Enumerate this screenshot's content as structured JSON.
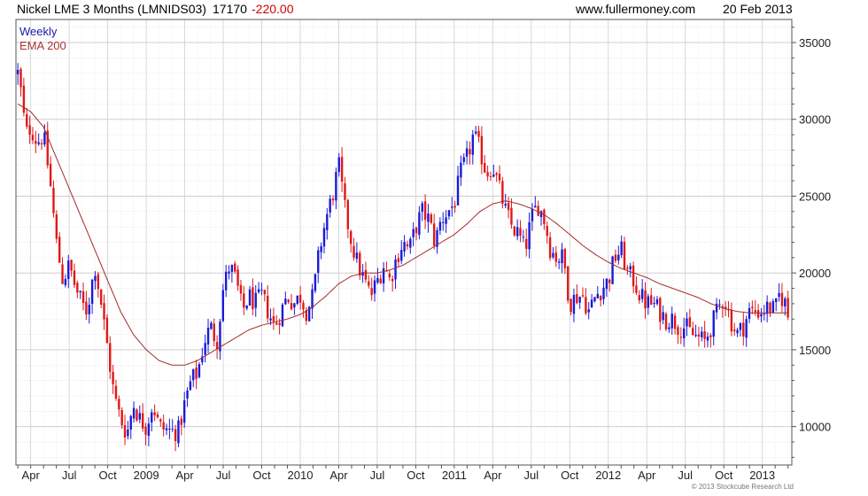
{
  "header": {
    "title": "Nickel LME 3 Months (LMNIDS03)",
    "price": "17170",
    "change": "-220.00",
    "site": "www.fullermoney.com",
    "date": "20 Feb 2013"
  },
  "legend": {
    "weekly": "Weekly",
    "ema": "EMA 200"
  },
  "copyright": "© 2013 Stockcube Research Ltd",
  "colors": {
    "up": "#1a1ad8",
    "down": "#e01818",
    "ema": "#a52a2a",
    "grid": "#cfcfcf",
    "frame": "#555555"
  },
  "chart_data": {
    "type": "candlestick",
    "title": "Nickel LME 3 Months (LMNIDS03)",
    "interval": "Weekly",
    "ylim": [
      7500,
      36500
    ],
    "yticks": [
      10000,
      15000,
      20000,
      25000,
      30000,
      35000
    ],
    "grid": true,
    "y_axis_side": "right",
    "x_start_month": "2008-03",
    "x_end_month": "2013-02",
    "x_ticks": [
      {
        "label": "Apr",
        "month": 1
      },
      {
        "label": "Jul",
        "month": 4
      },
      {
        "label": "Oct",
        "month": 7
      },
      {
        "label": "2009",
        "month": 10
      },
      {
        "label": "Apr",
        "month": 13
      },
      {
        "label": "Jul",
        "month": 16
      },
      {
        "label": "Oct",
        "month": 19
      },
      {
        "label": "2010",
        "month": 22
      },
      {
        "label": "Apr",
        "month": 25
      },
      {
        "label": "Jul",
        "month": 28
      },
      {
        "label": "Oct",
        "month": 31
      },
      {
        "label": "2011",
        "month": 34
      },
      {
        "label": "Apr",
        "month": 37
      },
      {
        "label": "Jul",
        "month": 40
      },
      {
        "label": "Oct",
        "month": 43
      },
      {
        "label": "2012",
        "month": 46
      },
      {
        "label": "Apr",
        "month": 49
      },
      {
        "label": "Jul",
        "month": 52
      },
      {
        "label": "Oct",
        "month": 55
      },
      {
        "label": "2013",
        "month": 58
      }
    ],
    "close_path": [
      [
        0,
        33000
      ],
      [
        0.3,
        31500
      ],
      [
        0.6,
        29000
      ],
      [
        1.0,
        29500
      ],
      [
        1.5,
        28500
      ],
      [
        2.0,
        29000
      ],
      [
        2.5,
        26000
      ],
      [
        3.0,
        22000
      ],
      [
        3.5,
        19500
      ],
      [
        4.0,
        20500
      ],
      [
        4.5,
        19000
      ],
      [
        5.0,
        18000
      ],
      [
        5.3,
        17500
      ],
      [
        5.6,
        18500
      ],
      [
        6.0,
        20500
      ],
      [
        6.5,
        18000
      ],
      [
        7.0,
        15000
      ],
      [
        7.5,
        12000
      ],
      [
        8.0,
        10500
      ],
      [
        8.5,
        9500
      ],
      [
        9.0,
        11500
      ],
      [
        9.5,
        10500
      ],
      [
        10.0,
        10000
      ],
      [
        10.5,
        11500
      ],
      [
        11.0,
        10000
      ],
      [
        11.5,
        9800
      ],
      [
        12.0,
        9700
      ],
      [
        12.5,
        9700
      ],
      [
        13.0,
        11500
      ],
      [
        13.5,
        13000
      ],
      [
        14.0,
        13500
      ],
      [
        14.5,
        15500
      ],
      [
        15.0,
        16500
      ],
      [
        15.5,
        15500
      ],
      [
        16.0,
        19000
      ],
      [
        16.5,
        20500
      ],
      [
        17.0,
        19500
      ],
      [
        17.5,
        17500
      ],
      [
        18.0,
        18500
      ],
      [
        18.5,
        18000
      ],
      [
        19.0,
        18500
      ],
      [
        19.5,
        17500
      ],
      [
        20.0,
        16500
      ],
      [
        20.5,
        17500
      ],
      [
        21.0,
        18500
      ],
      [
        21.5,
        18000
      ],
      [
        22.0,
        18500
      ],
      [
        22.5,
        17500
      ],
      [
        23.0,
        18500
      ],
      [
        23.5,
        21500
      ],
      [
        24.0,
        23500
      ],
      [
        24.5,
        25000
      ],
      [
        25.0,
        27000
      ],
      [
        25.5,
        24000
      ],
      [
        26.0,
        22000
      ],
      [
        26.5,
        20500
      ],
      [
        27.0,
        19500
      ],
      [
        27.5,
        18500
      ],
      [
        28.0,
        19500
      ],
      [
        28.5,
        20500
      ],
      [
        29.0,
        19500
      ],
      [
        29.5,
        21000
      ],
      [
        30.0,
        22000
      ],
      [
        30.5,
        21500
      ],
      [
        31.0,
        23000
      ],
      [
        31.5,
        24000
      ],
      [
        32.0,
        23500
      ],
      [
        32.5,
        22000
      ],
      [
        33.0,
        23500
      ],
      [
        33.5,
        24000
      ],
      [
        34.0,
        24500
      ],
      [
        34.5,
        26500
      ],
      [
        35.0,
        27500
      ],
      [
        35.5,
        29000
      ],
      [
        36.0,
        28000
      ],
      [
        36.5,
        26500
      ],
      [
        37.0,
        27000
      ],
      [
        37.5,
        25500
      ],
      [
        38.0,
        24000
      ],
      [
        38.5,
        23000
      ],
      [
        39.0,
        22500
      ],
      [
        39.5,
        21500
      ],
      [
        40.0,
        23500
      ],
      [
        40.5,
        24500
      ],
      [
        41.0,
        23500
      ],
      [
        41.5,
        21500
      ],
      [
        42.0,
        21000
      ],
      [
        42.5,
        21000
      ],
      [
        43.0,
        18000
      ],
      [
        43.5,
        18500
      ],
      [
        44.0,
        18500
      ],
      [
        44.5,
        17500
      ],
      [
        45.0,
        18500
      ],
      [
        45.5,
        19000
      ],
      [
        46.0,
        19500
      ],
      [
        46.5,
        21000
      ],
      [
        47.0,
        21500
      ],
      [
        47.5,
        20000
      ],
      [
        48.0,
        19500
      ],
      [
        48.5,
        18500
      ],
      [
        49.0,
        18000
      ],
      [
        49.5,
        18000
      ],
      [
        50.0,
        17500
      ],
      [
        50.5,
        17000
      ],
      [
        51.0,
        17000
      ],
      [
        51.5,
        16500
      ],
      [
        52.0,
        16500
      ],
      [
        52.5,
        16000
      ],
      [
        53.0,
        15800
      ],
      [
        53.5,
        15500
      ],
      [
        54.0,
        16500
      ],
      [
        54.5,
        17500
      ],
      [
        55.0,
        18500
      ],
      [
        55.5,
        17000
      ],
      [
        56.0,
        16000
      ],
      [
        56.5,
        16500
      ],
      [
        57.0,
        17500
      ],
      [
        57.5,
        17500
      ],
      [
        58.0,
        17500
      ],
      [
        58.5,
        17800
      ],
      [
        59.0,
        17500
      ],
      [
        59.3,
        18500
      ],
      [
        59.7,
        18300
      ],
      [
        60.0,
        17170
      ]
    ],
    "ema_path": [
      [
        0,
        31000
      ],
      [
        1,
        30500
      ],
      [
        2,
        29500
      ],
      [
        3,
        27500
      ],
      [
        4,
        25500
      ],
      [
        5,
        23500
      ],
      [
        6,
        21500
      ],
      [
        7,
        19500
      ],
      [
        8,
        17500
      ],
      [
        9,
        16000
      ],
      [
        10,
        15000
      ],
      [
        11,
        14300
      ],
      [
        12,
        14000
      ],
      [
        13,
        14000
      ],
      [
        14,
        14300
      ],
      [
        15,
        14800
      ],
      [
        16,
        15300
      ],
      [
        17,
        15800
      ],
      [
        18,
        16300
      ],
      [
        19,
        16600
      ],
      [
        20,
        16800
      ],
      [
        21,
        17000
      ],
      [
        22,
        17300
      ],
      [
        23,
        17800
      ],
      [
        24,
        18500
      ],
      [
        25,
        19300
      ],
      [
        26,
        19800
      ],
      [
        27,
        20000
      ],
      [
        28,
        20000
      ],
      [
        29,
        20200
      ],
      [
        30,
        20500
      ],
      [
        31,
        21000
      ],
      [
        32,
        21500
      ],
      [
        33,
        22000
      ],
      [
        34,
        22500
      ],
      [
        35,
        23200
      ],
      [
        36,
        24000
      ],
      [
        37,
        24500
      ],
      [
        38,
        24700
      ],
      [
        39,
        24500
      ],
      [
        40,
        24200
      ],
      [
        41,
        23800
      ],
      [
        42,
        23200
      ],
      [
        43,
        22500
      ],
      [
        44,
        21800
      ],
      [
        45,
        21200
      ],
      [
        46,
        20700
      ],
      [
        47,
        20300
      ],
      [
        48,
        20000
      ],
      [
        49,
        19700
      ],
      [
        50,
        19300
      ],
      [
        51,
        19000
      ],
      [
        52,
        18700
      ],
      [
        53,
        18400
      ],
      [
        54,
        18000
      ],
      [
        55,
        17700
      ],
      [
        56,
        17500
      ],
      [
        57,
        17400
      ],
      [
        58,
        17400
      ],
      [
        59,
        17400
      ],
      [
        60,
        17400
      ]
    ],
    "weeks": 260
  }
}
